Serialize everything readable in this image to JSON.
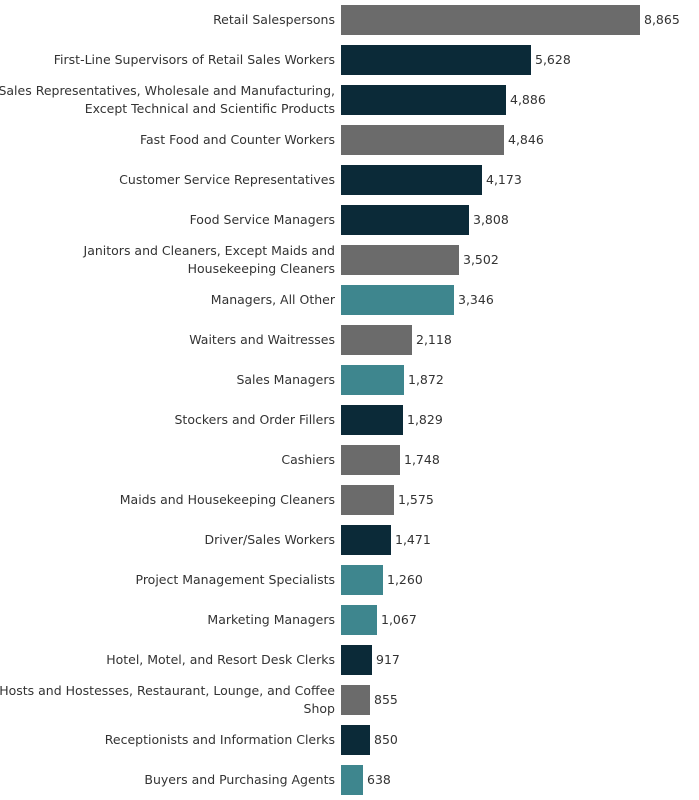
{
  "chart_data": {
    "type": "bar",
    "orientation": "horizontal",
    "categories": [
      "Retail Salespersons",
      "First-Line Supervisors of Retail Sales Workers",
      "Sales Representatives, Wholesale and Manufacturing, Except Technical and Scientific Products",
      "Fast Food and Counter Workers",
      "Customer Service Representatives",
      "Food Service Managers",
      "Janitors and Cleaners, Except Maids and Housekeeping Cleaners",
      "Managers, All Other",
      "Waiters and Waitresses",
      "Sales Managers",
      "Stockers and Order Fillers",
      "Cashiers",
      "Maids and Housekeeping Cleaners",
      "Driver/Sales Workers",
      "Project Management Specialists",
      "Marketing Managers",
      "Hotel, Motel, and Resort Desk Clerks",
      "Hosts and Hostesses, Restaurant, Lounge, and Coffee Shop",
      "Receptionists and Information Clerks",
      "Buyers and Purchasing Agents"
    ],
    "values": [
      8865,
      5628,
      4886,
      4846,
      4173,
      3808,
      3502,
      3346,
      2118,
      1872,
      1829,
      1748,
      1575,
      1471,
      1260,
      1067,
      917,
      855,
      850,
      638
    ],
    "value_labels": [
      "8,865",
      "5,628",
      "4,886",
      "4,846",
      "4,173",
      "3,808",
      "3,502",
      "3,346",
      "2,118",
      "1,872",
      "1,829",
      "1,748",
      "1,575",
      "1,471",
      "1,260",
      "1,067",
      "917",
      "855",
      "850",
      "638"
    ],
    "bar_colors": [
      "#6b6b6b",
      "#0b2a38",
      "#0b2a38",
      "#6b6b6b",
      "#0b2a38",
      "#0b2a38",
      "#6b6b6b",
      "#3e868e",
      "#6b6b6b",
      "#3e868e",
      "#0b2a38",
      "#6b6b6b",
      "#6b6b6b",
      "#0b2a38",
      "#3e868e",
      "#3e868e",
      "#0b2a38",
      "#6b6b6b",
      "#0b2a38",
      "#3e868e"
    ],
    "xlim": [
      0,
      8865
    ],
    "title": "",
    "xlabel": "",
    "ylabel": "",
    "grid": false,
    "legend": "none"
  }
}
